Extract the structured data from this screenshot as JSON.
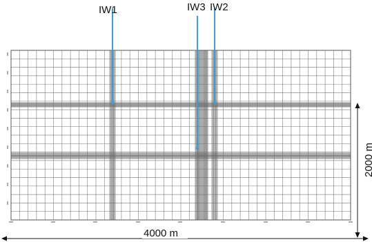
{
  "wells": [
    {
      "label": "IW1",
      "depth": "top"
    },
    {
      "label": "IW3",
      "depth": "bottom"
    },
    {
      "label": "IW2",
      "depth": "top"
    }
  ],
  "dimensions": {
    "width_label": "4000 m",
    "height_label": "2000 m"
  },
  "domain": {
    "width_m": 4000,
    "height_m": 2000
  },
  "colors": {
    "well_line": "#3a9fd8",
    "grid_line": "#6a6a6a",
    "border": "#555555",
    "arrow": "#111111"
  }
}
